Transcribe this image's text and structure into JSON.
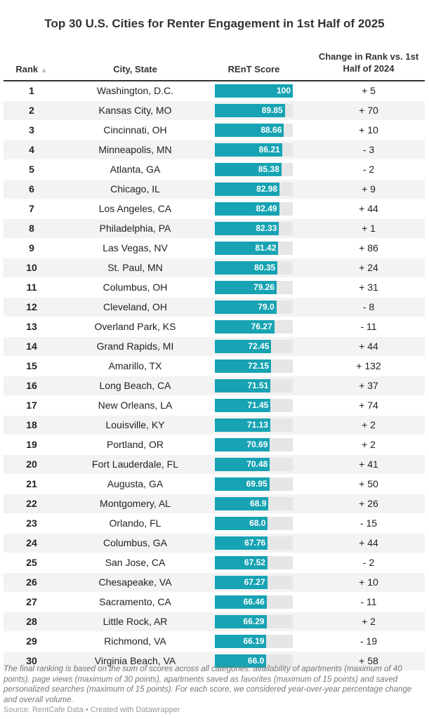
{
  "title": "Top 30 U.S. Cities for Renter Engagement in 1st Half of 2025",
  "headers": {
    "rank": "Rank",
    "sort_icon": "▲",
    "city": "City, State",
    "score": "REnT Score",
    "change": "Change in Rank vs. 1st Half of 2024"
  },
  "colors": {
    "bar": "#17a3b3",
    "track": "#e6e6e6"
  },
  "chart_data": {
    "type": "table",
    "xlim": [
      0,
      100
    ],
    "rows": [
      {
        "rank": "1",
        "city": "Washington, D.C.",
        "score": 100,
        "score_label": "100",
        "change": "+ 5"
      },
      {
        "rank": "2",
        "city": "Kansas City, MO",
        "score": 89.85,
        "score_label": "89.85",
        "change": "+ 70"
      },
      {
        "rank": "3",
        "city": "Cincinnati, OH",
        "score": 88.66,
        "score_label": "88.66",
        "change": "+ 10"
      },
      {
        "rank": "4",
        "city": "Minneapolis, MN",
        "score": 86.21,
        "score_label": "86.21",
        "change": "- 3"
      },
      {
        "rank": "5",
        "city": "Atlanta, GA",
        "score": 85.38,
        "score_label": "85.38",
        "change": "- 2"
      },
      {
        "rank": "6",
        "city": "Chicago, IL",
        "score": 82.98,
        "score_label": "82.98",
        "change": "+ 9"
      },
      {
        "rank": "7",
        "city": "Los Angeles, CA",
        "score": 82.49,
        "score_label": "82.49",
        "change": "+ 44"
      },
      {
        "rank": "8",
        "city": "Philadelphia, PA",
        "score": 82.33,
        "score_label": "82.33",
        "change": "+ 1"
      },
      {
        "rank": "9",
        "city": "Las Vegas, NV",
        "score": 81.42,
        "score_label": "81.42",
        "change": "+ 86"
      },
      {
        "rank": "10",
        "city": "St. Paul, MN",
        "score": 80.35,
        "score_label": "80.35",
        "change": "+ 24"
      },
      {
        "rank": "11",
        "city": "Columbus, OH",
        "score": 79.26,
        "score_label": "79.26",
        "change": "+ 31"
      },
      {
        "rank": "12",
        "city": "Cleveland, OH",
        "score": 79.0,
        "score_label": "79.0",
        "change": "- 8"
      },
      {
        "rank": "13",
        "city": "Overland Park, KS",
        "score": 76.27,
        "score_label": "76.27",
        "change": "- 11"
      },
      {
        "rank": "14",
        "city": "Grand Rapids, MI",
        "score": 72.45,
        "score_label": "72.45",
        "change": "+ 44"
      },
      {
        "rank": "15",
        "city": "Amarillo, TX",
        "score": 72.15,
        "score_label": "72.15",
        "change": "+ 132"
      },
      {
        "rank": "16",
        "city": "Long Beach, CA",
        "score": 71.51,
        "score_label": "71.51",
        "change": "+ 37"
      },
      {
        "rank": "17",
        "city": "New Orleans, LA",
        "score": 71.45,
        "score_label": "71.45",
        "change": "+ 74"
      },
      {
        "rank": "18",
        "city": "Louisville, KY",
        "score": 71.13,
        "score_label": "71.13",
        "change": "+ 2"
      },
      {
        "rank": "19",
        "city": "Portland, OR",
        "score": 70.69,
        "score_label": "70.69",
        "change": "+ 2"
      },
      {
        "rank": "20",
        "city": "Fort Lauderdale, FL",
        "score": 70.48,
        "score_label": "70.48",
        "change": "+ 41"
      },
      {
        "rank": "21",
        "city": "Augusta, GA",
        "score": 69.95,
        "score_label": "69.95",
        "change": "+ 50"
      },
      {
        "rank": "22",
        "city": "Montgomery, AL",
        "score": 68.9,
        "score_label": "68.9",
        "change": "+ 26"
      },
      {
        "rank": "23",
        "city": "Orlando, FL",
        "score": 68.0,
        "score_label": "68.0",
        "change": "- 15"
      },
      {
        "rank": "24",
        "city": "Columbus, GA",
        "score": 67.76,
        "score_label": "67.76",
        "change": "+ 44"
      },
      {
        "rank": "25",
        "city": "San Jose, CA",
        "score": 67.52,
        "score_label": "67.52",
        "change": "- 2"
      },
      {
        "rank": "26",
        "city": "Chesapeake, VA",
        "score": 67.27,
        "score_label": "67.27",
        "change": "+ 10"
      },
      {
        "rank": "27",
        "city": "Sacramento, CA",
        "score": 66.46,
        "score_label": "66.46",
        "change": "- 11"
      },
      {
        "rank": "28",
        "city": "Little Rock, AR",
        "score": 66.29,
        "score_label": "66.29",
        "change": "+ 2"
      },
      {
        "rank": "29",
        "city": "Richmond, VA",
        "score": 66.19,
        "score_label": "66.19",
        "change": "- 19"
      },
      {
        "rank": "30",
        "city": "Virginia Beach, VA",
        "score": 66.0,
        "score_label": "66.0",
        "change": "+ 58"
      }
    ]
  },
  "note": "The final ranking is based on the sum of scores across all categories: availability of apartments (maximum of 40 points), page views (maximum of 30 points), apartments saved as favorites (maximum of 15 points) and saved personalized searches (maximum of 15 points). For each score, we considered year-over-year percentage change and overall volume.",
  "source": "Source: RentCafe Data • Created with Datawrapper"
}
